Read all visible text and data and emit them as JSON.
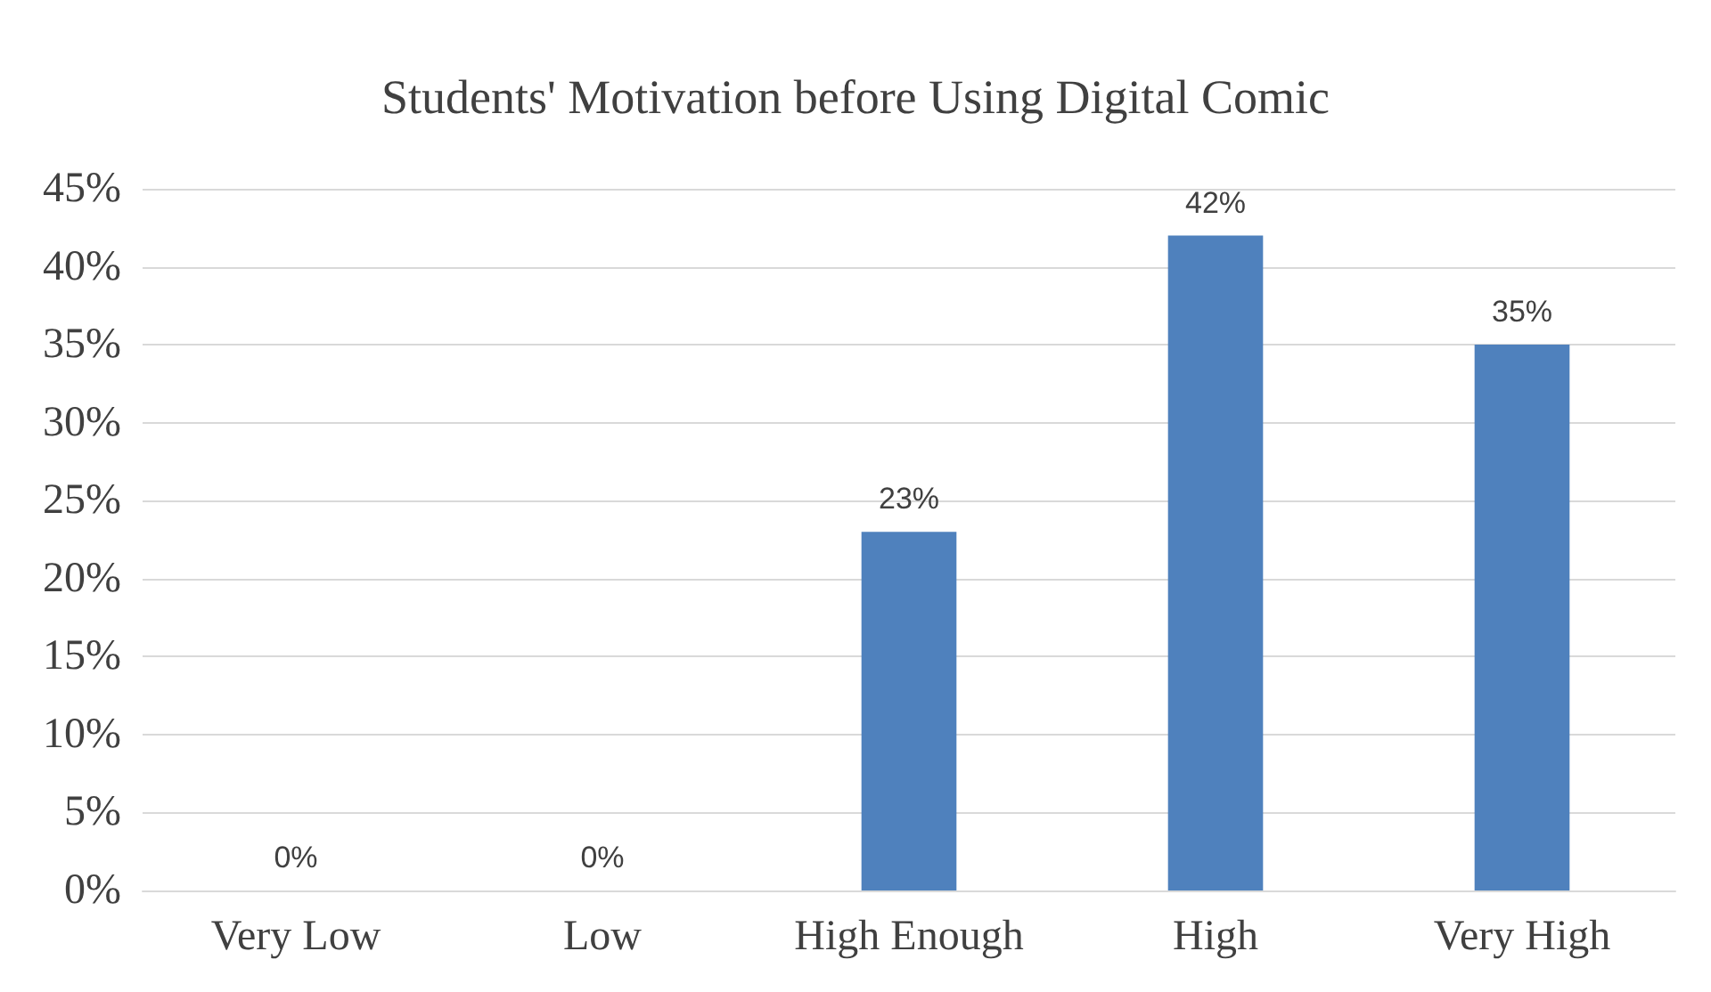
{
  "chart_data": {
    "type": "bar",
    "title": "Students' Motivation before Using Digital Comic",
    "categories": [
      "Very Low",
      "Low",
      "High Enough",
      "High",
      "Very High"
    ],
    "values": [
      0,
      0,
      23,
      42,
      35
    ],
    "value_labels": [
      "0%",
      "0%",
      "23%",
      "42%",
      "35%"
    ],
    "color": "#4f81bd",
    "ylim": [
      0,
      45
    ],
    "yticks": [
      {
        "value": 0,
        "label": "0%"
      },
      {
        "value": 5,
        "label": "5%"
      },
      {
        "value": 10,
        "label": "10%"
      },
      {
        "value": 15,
        "label": "15%"
      },
      {
        "value": 20,
        "label": "20%"
      },
      {
        "value": 25,
        "label": "25%"
      },
      {
        "value": 30,
        "label": "30%"
      },
      {
        "value": 35,
        "label": "35%"
      },
      {
        "value": 40,
        "label": "40%"
      },
      {
        "value": 45,
        "label": "45%"
      }
    ],
    "grid": "y"
  }
}
